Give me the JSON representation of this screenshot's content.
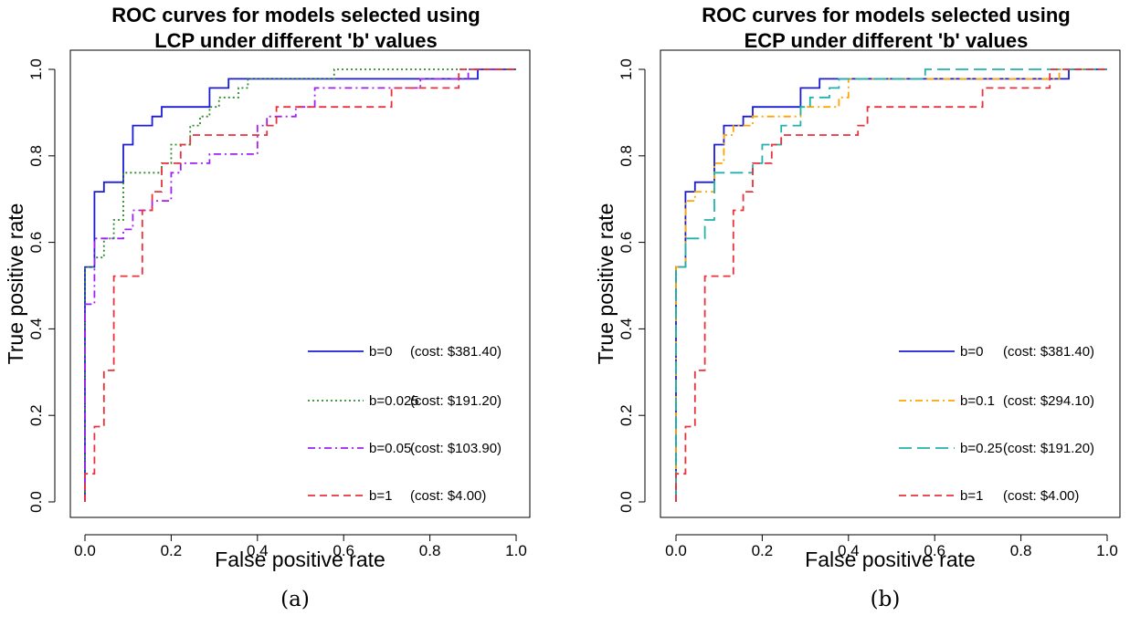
{
  "chart_data": [
    {
      "type": "line",
      "title": [
        "ROC curves for models selected using",
        "LCP under different 'b' values"
      ],
      "xlabel": "False positive rate",
      "ylabel": "True positive rate",
      "xlim": [
        0,
        1
      ],
      "ylim": [
        0,
        1
      ],
      "xticks": [
        "0.0",
        "0.2",
        "0.4",
        "0.6",
        "0.8",
        "1.0"
      ],
      "yticks": [
        "0.0",
        "0.2",
        "0.4",
        "0.6",
        "0.8",
        "1.0"
      ],
      "grid": false,
      "legend_position": "bottom-right",
      "caption": "(a)",
      "series": [
        {
          "name": "b=0",
          "cost": "(cost: $381.40)",
          "color": "#1c1cd6",
          "dash": "solid",
          "points": [
            [
              0,
              0
            ],
            [
              0,
              0.543
            ],
            [
              0.022,
              0.543
            ],
            [
              0.022,
              0.717
            ],
            [
              0.044,
              0.717
            ],
            [
              0.044,
              0.739
            ],
            [
              0.089,
              0.739
            ],
            [
              0.089,
              0.826
            ],
            [
              0.111,
              0.826
            ],
            [
              0.111,
              0.87
            ],
            [
              0.156,
              0.87
            ],
            [
              0.156,
              0.891
            ],
            [
              0.178,
              0.891
            ],
            [
              0.178,
              0.913
            ],
            [
              0.289,
              0.913
            ],
            [
              0.289,
              0.957
            ],
            [
              0.333,
              0.957
            ],
            [
              0.333,
              0.978
            ],
            [
              0.911,
              0.978
            ],
            [
              0.911,
              1
            ],
            [
              1,
              1
            ]
          ]
        },
        {
          "name": "b=0.025",
          "cost": "(cost: $191.20)",
          "color": "#2e8b2e",
          "dash": "dot",
          "points": [
            [
              0,
              0
            ],
            [
              0,
              0.543
            ],
            [
              0.022,
              0.543
            ],
            [
              0.022,
              0.565
            ],
            [
              0.044,
              0.565
            ],
            [
              0.044,
              0.609
            ],
            [
              0.067,
              0.609
            ],
            [
              0.067,
              0.63
            ],
            [
              0.067,
              0.652
            ],
            [
              0.089,
              0.652
            ],
            [
              0.089,
              0.761
            ],
            [
              0.178,
              0.761
            ],
            [
              0.178,
              0.783
            ],
            [
              0.2,
              0.783
            ],
            [
              0.2,
              0.826
            ],
            [
              0.244,
              0.826
            ],
            [
              0.244,
              0.87
            ],
            [
              0.267,
              0.87
            ],
            [
              0.267,
              0.891
            ],
            [
              0.289,
              0.891
            ],
            [
              0.289,
              0.913
            ],
            [
              0.311,
              0.913
            ],
            [
              0.311,
              0.935
            ],
            [
              0.356,
              0.935
            ],
            [
              0.356,
              0.957
            ],
            [
              0.378,
              0.957
            ],
            [
              0.378,
              0.978
            ],
            [
              0.578,
              0.978
            ],
            [
              0.578,
              1
            ],
            [
              1,
              1
            ]
          ]
        },
        {
          "name": "b=0.05",
          "cost": "(cost: $103.90)",
          "color": "#a020f0",
          "dash": "dashdot",
          "points": [
            [
              0,
              0
            ],
            [
              0,
              0.457
            ],
            [
              0.022,
              0.457
            ],
            [
              0.022,
              0.587
            ],
            [
              0.022,
              0.609
            ],
            [
              0.067,
              0.609
            ],
            [
              0.089,
              0.609
            ],
            [
              0.089,
              0.63
            ],
            [
              0.111,
              0.63
            ],
            [
              0.111,
              0.674
            ],
            [
              0.156,
              0.674
            ],
            [
              0.156,
              0.696
            ],
            [
              0.2,
              0.696
            ],
            [
              0.2,
              0.761
            ],
            [
              0.222,
              0.761
            ],
            [
              0.222,
              0.783
            ],
            [
              0.289,
              0.783
            ],
            [
              0.289,
              0.804
            ],
            [
              0.4,
              0.804
            ],
            [
              0.4,
              0.87
            ],
            [
              0.422,
              0.87
            ],
            [
              0.422,
              0.891
            ],
            [
              0.489,
              0.891
            ],
            [
              0.489,
              0.913
            ],
            [
              0.533,
              0.913
            ],
            [
              0.533,
              0.957
            ],
            [
              0.778,
              0.957
            ],
            [
              0.778,
              0.978
            ],
            [
              0.889,
              0.978
            ],
            [
              0.889,
              1
            ],
            [
              1,
              1
            ]
          ]
        },
        {
          "name": "b=1",
          "cost": "(cost: $4.00)",
          "color": "#e8323c",
          "dash": "dash",
          "points": [
            [
              0,
              0
            ],
            [
              0,
              0.065
            ],
            [
              0.022,
              0.065
            ],
            [
              0.022,
              0.174
            ],
            [
              0.044,
              0.174
            ],
            [
              0.044,
              0.304
            ],
            [
              0.067,
              0.304
            ],
            [
              0.067,
              0.326
            ],
            [
              0.067,
              0.522
            ],
            [
              0.133,
              0.522
            ],
            [
              0.133,
              0.674
            ],
            [
              0.156,
              0.674
            ],
            [
              0.156,
              0.717
            ],
            [
              0.178,
              0.717
            ],
            [
              0.178,
              0.783
            ],
            [
              0.222,
              0.783
            ],
            [
              0.222,
              0.826
            ],
            [
              0.244,
              0.826
            ],
            [
              0.244,
              0.848
            ],
            [
              0.422,
              0.848
            ],
            [
              0.422,
              0.87
            ],
            [
              0.444,
              0.87
            ],
            [
              0.444,
              0.913
            ],
            [
              0.711,
              0.913
            ],
            [
              0.711,
              0.957
            ],
            [
              0.867,
              0.957
            ],
            [
              0.867,
              1
            ],
            [
              1,
              1
            ]
          ]
        }
      ]
    },
    {
      "type": "line",
      "title": [
        "ROC curves for models selected using",
        "ECP under different 'b' values"
      ],
      "xlabel": "False positive rate",
      "ylabel": "True positive rate",
      "xlim": [
        0,
        1
      ],
      "ylim": [
        0,
        1
      ],
      "xticks": [
        "0.0",
        "0.2",
        "0.4",
        "0.6",
        "0.8",
        "1.0"
      ],
      "yticks": [
        "0.0",
        "0.2",
        "0.4",
        "0.6",
        "0.8",
        "1.0"
      ],
      "grid": false,
      "legend_position": "bottom-right",
      "caption": "(b)",
      "series": [
        {
          "name": "b=0",
          "cost": "(cost: $381.40)",
          "color": "#1c1cd6",
          "dash": "solid",
          "points": [
            [
              0,
              0
            ],
            [
              0,
              0.543
            ],
            [
              0.022,
              0.543
            ],
            [
              0.022,
              0.717
            ],
            [
              0.044,
              0.717
            ],
            [
              0.044,
              0.739
            ],
            [
              0.089,
              0.739
            ],
            [
              0.089,
              0.826
            ],
            [
              0.111,
              0.826
            ],
            [
              0.111,
              0.87
            ],
            [
              0.156,
              0.87
            ],
            [
              0.156,
              0.891
            ],
            [
              0.178,
              0.891
            ],
            [
              0.178,
              0.913
            ],
            [
              0.289,
              0.913
            ],
            [
              0.289,
              0.957
            ],
            [
              0.333,
              0.957
            ],
            [
              0.333,
              0.978
            ],
            [
              0.911,
              0.978
            ],
            [
              0.911,
              1
            ],
            [
              1,
              1
            ]
          ]
        },
        {
          "name": "b=0.1",
          "cost": "(cost: $294.10)",
          "color": "#ffa500",
          "dash": "dashdot",
          "points": [
            [
              0,
              0
            ],
            [
              0,
              0.543
            ],
            [
              0.022,
              0.543
            ],
            [
              0.022,
              0.696
            ],
            [
              0.044,
              0.696
            ],
            [
              0.044,
              0.717
            ],
            [
              0.089,
              0.717
            ],
            [
              0.089,
              0.783
            ],
            [
              0.111,
              0.783
            ],
            [
              0.111,
              0.848
            ],
            [
              0.133,
              0.848
            ],
            [
              0.133,
              0.87
            ],
            [
              0.178,
              0.87
            ],
            [
              0.178,
              0.891
            ],
            [
              0.289,
              0.891
            ],
            [
              0.289,
              0.913
            ],
            [
              0.378,
              0.913
            ],
            [
              0.378,
              0.935
            ],
            [
              0.4,
              0.935
            ],
            [
              0.4,
              0.978
            ],
            [
              0.889,
              0.978
            ],
            [
              0.889,
              1
            ],
            [
              1,
              1
            ]
          ]
        },
        {
          "name": "b=0.25",
          "cost": "(cost: $191.20)",
          "color": "#20b2aa",
          "dash": "longdash",
          "points": [
            [
              0,
              0
            ],
            [
              0,
              0.543
            ],
            [
              0.022,
              0.543
            ],
            [
              0.022,
              0.609
            ],
            [
              0.067,
              0.609
            ],
            [
              0.067,
              0.652
            ],
            [
              0.089,
              0.652
            ],
            [
              0.089,
              0.761
            ],
            [
              0.178,
              0.761
            ],
            [
              0.178,
              0.783
            ],
            [
              0.2,
              0.783
            ],
            [
              0.2,
              0.826
            ],
            [
              0.244,
              0.826
            ],
            [
              0.244,
              0.87
            ],
            [
              0.289,
              0.87
            ],
            [
              0.289,
              0.913
            ],
            [
              0.311,
              0.913
            ],
            [
              0.311,
              0.935
            ],
            [
              0.356,
              0.935
            ],
            [
              0.356,
              0.957
            ],
            [
              0.378,
              0.957
            ],
            [
              0.378,
              0.978
            ],
            [
              0.578,
              0.978
            ],
            [
              0.578,
              1
            ],
            [
              1,
              1
            ]
          ]
        },
        {
          "name": "b=1",
          "cost": "(cost: $4.00)",
          "color": "#e8323c",
          "dash": "dash",
          "points": [
            [
              0,
              0
            ],
            [
              0,
              0.065
            ],
            [
              0.022,
              0.065
            ],
            [
              0.022,
              0.174
            ],
            [
              0.044,
              0.174
            ],
            [
              0.044,
              0.304
            ],
            [
              0.067,
              0.304
            ],
            [
              0.067,
              0.326
            ],
            [
              0.067,
              0.522
            ],
            [
              0.133,
              0.522
            ],
            [
              0.133,
              0.674
            ],
            [
              0.156,
              0.674
            ],
            [
              0.156,
              0.717
            ],
            [
              0.178,
              0.717
            ],
            [
              0.178,
              0.783
            ],
            [
              0.222,
              0.783
            ],
            [
              0.222,
              0.826
            ],
            [
              0.244,
              0.826
            ],
            [
              0.244,
              0.848
            ],
            [
              0.422,
              0.848
            ],
            [
              0.422,
              0.87
            ],
            [
              0.444,
              0.87
            ],
            [
              0.444,
              0.913
            ],
            [
              0.711,
              0.913
            ],
            [
              0.711,
              0.957
            ],
            [
              0.867,
              0.957
            ],
            [
              0.867,
              1
            ],
            [
              1,
              1
            ]
          ]
        }
      ]
    }
  ]
}
